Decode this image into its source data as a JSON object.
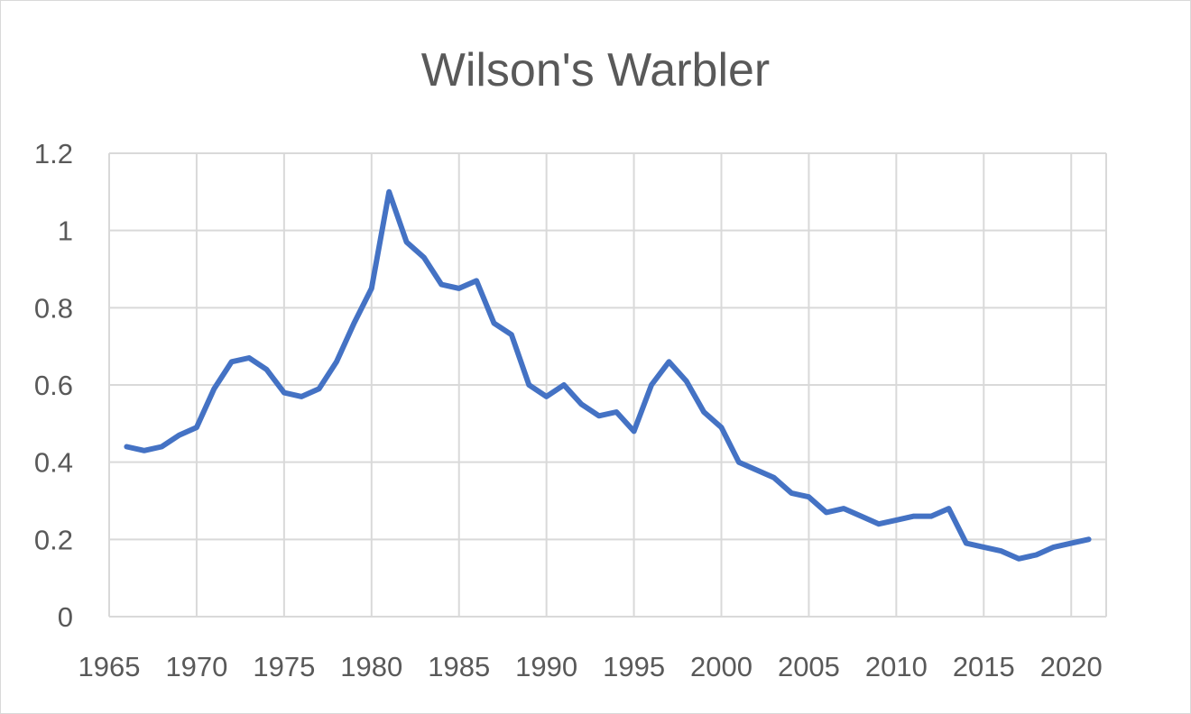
{
  "chart_data": {
    "type": "line",
    "title": "Wilson's Warbler",
    "xlabel": "",
    "ylabel": "",
    "xlim": [
      1965,
      2022
    ],
    "ylim": [
      0,
      1.2
    ],
    "x_ticks": [
      1965,
      1970,
      1975,
      1980,
      1985,
      1990,
      1995,
      2000,
      2005,
      2010,
      2015,
      2020
    ],
    "x_tick_labels": [
      "1965",
      "1970",
      "1975",
      "1980",
      "1985",
      "1990",
      "1995",
      "2000",
      "2005",
      "2010",
      "2015",
      "2020"
    ],
    "y_ticks": [
      0,
      0.2,
      0.4,
      0.6,
      0.8,
      1,
      1.2
    ],
    "y_tick_labels": [
      "0",
      "0.2",
      "0.4",
      "0.6",
      "0.8",
      "1",
      "1.2"
    ],
    "grid": true,
    "legend": "none",
    "series": [
      {
        "color": "#4472c4",
        "x": [
          1966,
          1967,
          1968,
          1969,
          1970,
          1971,
          1972,
          1973,
          1974,
          1975,
          1976,
          1977,
          1978,
          1979,
          1980,
          1981,
          1982,
          1983,
          1984,
          1985,
          1986,
          1987,
          1988,
          1989,
          1990,
          1991,
          1992,
          1993,
          1994,
          1995,
          1996,
          1997,
          1998,
          1999,
          2000,
          2001,
          2002,
          2003,
          2004,
          2005,
          2006,
          2007,
          2008,
          2009,
          2010,
          2011,
          2012,
          2013,
          2014,
          2015,
          2016,
          2017,
          2018,
          2019,
          2020,
          2021
        ],
        "y": [
          0.44,
          0.43,
          0.44,
          0.47,
          0.49,
          0.59,
          0.66,
          0.67,
          0.64,
          0.58,
          0.57,
          0.59,
          0.66,
          0.76,
          0.85,
          1.1,
          0.97,
          0.93,
          0.86,
          0.85,
          0.87,
          0.76,
          0.73,
          0.6,
          0.57,
          0.6,
          0.55,
          0.52,
          0.53,
          0.48,
          0.6,
          0.66,
          0.61,
          0.53,
          0.49,
          0.4,
          0.38,
          0.36,
          0.32,
          0.31,
          0.27,
          0.28,
          0.26,
          0.24,
          0.25,
          0.26,
          0.26,
          0.28,
          0.19,
          0.18,
          0.17,
          0.15,
          0.16,
          0.18,
          0.19,
          0.2
        ]
      }
    ]
  }
}
